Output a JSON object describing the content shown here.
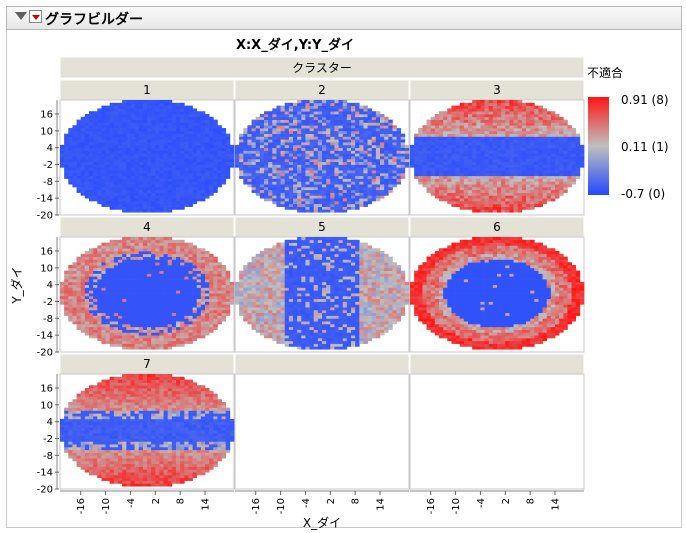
{
  "report": {
    "title": "グラフビルダー"
  },
  "chart_data": {
    "type": "heatmap",
    "title": "X:X_ダイ,Y:Y_ダイ",
    "xlabel": "X_ダイ",
    "ylabel": "Y_ダイ",
    "wrap_label": "クラスター",
    "x_ticks": [
      "-16",
      "-10",
      "-4",
      "2",
      "8",
      "14"
    ],
    "y_ticks": [
      "16",
      "10",
      "4",
      "-2",
      "-8",
      "-14",
      "-20"
    ],
    "xlim": [
      -21,
      21
    ],
    "ylim": [
      -20,
      21
    ],
    "legend": {
      "title": "不適合",
      "position": "right",
      "labels": [
        "0.91 (8)",
        "0.11 (1)",
        "-0.7 (0)"
      ],
      "values": [
        0.91,
        0.11,
        -0.7
      ],
      "colors": [
        "#ff1414",
        "#c0c0c0",
        "#2448ff"
      ]
    },
    "panels": [
      {
        "cluster": "1",
        "pattern": "all-pass"
      },
      {
        "cluster": "2",
        "pattern": "scattered"
      },
      {
        "cluster": "3",
        "pattern": "horizontal-band"
      },
      {
        "cluster": "4",
        "pattern": "edge-ring"
      },
      {
        "cluster": "5",
        "pattern": "vertical-sides"
      },
      {
        "cluster": "6",
        "pattern": "outer-ring"
      },
      {
        "cluster": "7",
        "pattern": "top-bottom"
      }
    ]
  }
}
